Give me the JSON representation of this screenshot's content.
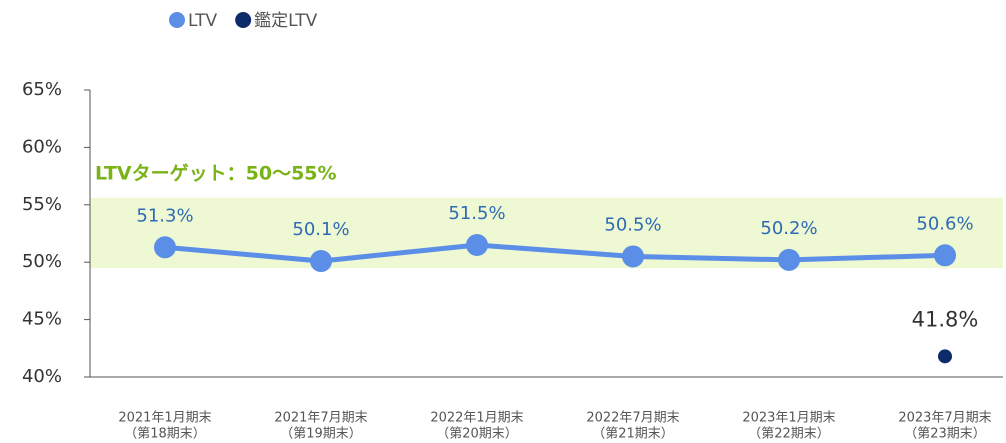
{
  "chart_data": {
    "type": "line",
    "categories": [
      [
        "2021年1月期末",
        "（第18期末）"
      ],
      [
        "2021年7月期末",
        "（第19期末）"
      ],
      [
        "2022年1月期末",
        "（第20期末）"
      ],
      [
        "2022年7月期末",
        "（第21期末）"
      ],
      [
        "2023年1月期末",
        "（第22期末）"
      ],
      [
        "2023年7月期末",
        "（第23期末）"
      ]
    ],
    "series": [
      {
        "name": "LTV",
        "color": "#5b8ee6",
        "values": [
          51.3,
          50.1,
          51.5,
          50.5,
          50.2,
          50.6
        ],
        "value_labels": [
          "51.3%",
          "50.1%",
          "51.5%",
          "50.5%",
          "50.2%",
          "50.6%"
        ]
      },
      {
        "name": "鑑定LTV",
        "color": "#0d2b6b",
        "values": [
          null,
          null,
          null,
          null,
          null,
          41.8
        ],
        "value_labels": [
          null,
          null,
          null,
          null,
          null,
          "41.8%"
        ]
      }
    ],
    "target_range": [
      50,
      55
    ],
    "target_label": "LTVターゲット：50〜55%",
    "ylim": [
      40,
      65
    ],
    "yticks": [
      {
        "value": 40,
        "label": "40%"
      },
      {
        "value": 45,
        "label": "45%"
      },
      {
        "value": 50,
        "label": "50%"
      },
      {
        "value": 55,
        "label": "55%"
      },
      {
        "value": 60,
        "label": "60%"
      },
      {
        "value": 65,
        "label": "65%"
      }
    ],
    "legend": "top-left"
  }
}
